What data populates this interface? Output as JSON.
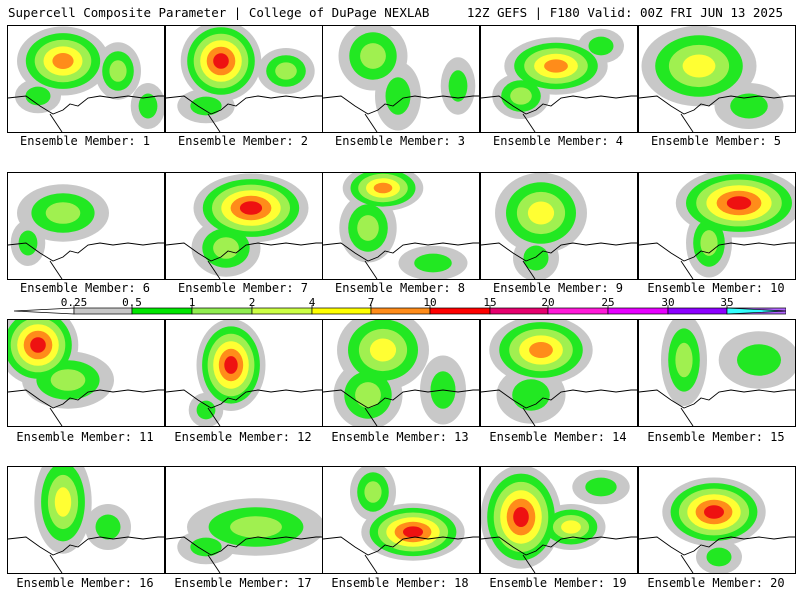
{
  "header": {
    "left": "Supercell Composite Parameter | College of DuPage NEXLAB",
    "right": "12Z GEFS | F180 Valid: 00Z FRI JUN 13 2025"
  },
  "panels": [
    {
      "label": "Ensemble Member: 1"
    },
    {
      "label": "Ensemble Member: 2"
    },
    {
      "label": "Ensemble Member: 3"
    },
    {
      "label": "Ensemble Member: 4"
    },
    {
      "label": "Ensemble Member: 5"
    },
    {
      "label": "Ensemble Member: 6"
    },
    {
      "label": "Ensemble Member: 7"
    },
    {
      "label": "Ensemble Member: 8"
    },
    {
      "label": "Ensemble Member: 9"
    },
    {
      "label": "Ensemble Member: 10"
    },
    {
      "label": "Ensemble Member: 11"
    },
    {
      "label": "Ensemble Member: 12"
    },
    {
      "label": "Ensemble Member: 13"
    },
    {
      "label": "Ensemble Member: 14"
    },
    {
      "label": "Ensemble Member: 15"
    },
    {
      "label": "Ensemble Member: 16"
    },
    {
      "label": "Ensemble Member: 17"
    },
    {
      "label": "Ensemble Member: 18"
    },
    {
      "label": "Ensemble Member: 19"
    },
    {
      "label": "Ensemble Member: 20"
    }
  ],
  "colorbar": {
    "ticks": [
      "0.25",
      "0.5",
      "1",
      "2",
      "4",
      "7",
      "10",
      "15",
      "20",
      "25",
      "30",
      "35"
    ],
    "colors": [
      "#c8c8c8",
      "#00e600",
      "#90ee50",
      "#ccff44",
      "#ffff00",
      "#ff8c1a",
      "#ff0000",
      "#e6006e",
      "#ff1ad9",
      "#e600ff",
      "#8c00ff",
      "#b266ff",
      "#33ffff"
    ]
  },
  "colors": {
    "gray": "#c8c8c8",
    "green": "#22e822",
    "light_green": "#a0f050",
    "yellow": "#ffff33",
    "orange": "#ff8c1a",
    "red": "#ee1111"
  }
}
